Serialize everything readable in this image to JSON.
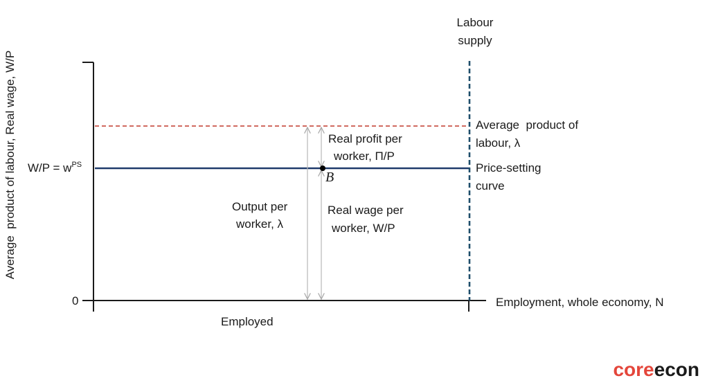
{
  "diagram": {
    "y_axis_label": "Average  product of labour, Real wage, W/P",
    "x_axis_label": "Employment, whole economy, N",
    "origin_label": "0",
    "wage_label_prefix": "W/P = w",
    "wage_label_sup": "PS",
    "labour_supply_line1": "Labour",
    "labour_supply_line2": "supply",
    "avg_product_line1": "Average  product of",
    "avg_product_line2": "labour, λ",
    "price_setting_line1": "Price-setting",
    "price_setting_line2": "curve",
    "real_profit_line1": "Real profit per",
    "real_profit_line2": "worker, Π/P",
    "output_line1": "Output per",
    "output_line2": "worker, λ",
    "real_wage_line1": "Real wage per",
    "real_wage_line2": "worker, W/P",
    "point_label": "B",
    "employed_label": "Employed",
    "colors": {
      "price_setting_curve": "#1f3a6b",
      "avg_product_line": "#c0392b",
      "labour_supply_line": "#1f4e6b",
      "arrows": "#b8b8b8",
      "axes": "#1a1a1a"
    }
  },
  "logo": {
    "part1": "core",
    "part2": "econ"
  }
}
